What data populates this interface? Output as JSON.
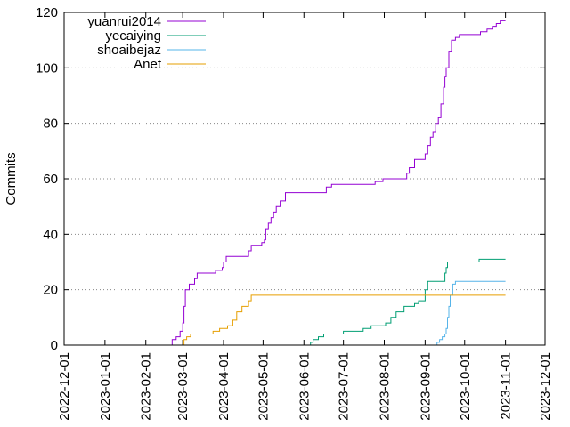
{
  "chart_data": {
    "type": "line",
    "title": "",
    "xlabel": "",
    "ylabel": "Commits",
    "ylim": [
      0,
      120
    ],
    "xlim": [
      "2022-12-01",
      "2023-12-01"
    ],
    "yticks": [
      0,
      20,
      40,
      60,
      80,
      100,
      120
    ],
    "xticks": [
      "2022-12-01",
      "2023-01-01",
      "2023-02-01",
      "2023-03-01",
      "2023-04-01",
      "2023-05-01",
      "2023-06-01",
      "2023-07-01",
      "2023-08-01",
      "2023-09-01",
      "2023-10-01",
      "2023-11-01",
      "2023-12-01"
    ],
    "grid": "horizontal dotted",
    "legend_position": "top-left",
    "series": [
      {
        "name": "yuanrui2014",
        "color": "#9400d3",
        "points": [
          [
            "2023-02-18",
            0
          ],
          [
            "2023-02-21",
            2
          ],
          [
            "2023-02-24",
            3
          ],
          [
            "2023-02-27",
            5
          ],
          [
            "2023-03-01",
            8
          ],
          [
            "2023-03-02",
            14
          ],
          [
            "2023-03-03",
            20
          ],
          [
            "2023-03-06",
            22
          ],
          [
            "2023-03-10",
            24
          ],
          [
            "2023-03-12",
            26
          ],
          [
            "2023-03-25",
            26
          ],
          [
            "2023-03-26",
            27
          ],
          [
            "2023-03-31",
            28
          ],
          [
            "2023-04-01",
            30
          ],
          [
            "2023-04-03",
            32
          ],
          [
            "2023-04-18",
            32
          ],
          [
            "2023-04-20",
            34
          ],
          [
            "2023-04-22",
            36
          ],
          [
            "2023-04-30",
            37
          ],
          [
            "2023-05-02",
            38
          ],
          [
            "2023-05-03",
            42
          ],
          [
            "2023-05-05",
            44
          ],
          [
            "2023-05-07",
            46
          ],
          [
            "2023-05-09",
            48
          ],
          [
            "2023-05-11",
            50
          ],
          [
            "2023-05-14",
            52
          ],
          [
            "2023-05-18",
            55
          ],
          [
            "2023-06-15",
            55
          ],
          [
            "2023-06-18",
            57
          ],
          [
            "2023-06-22",
            58
          ],
          [
            "2023-07-22",
            58
          ],
          [
            "2023-07-25",
            59
          ],
          [
            "2023-07-31",
            60
          ],
          [
            "2023-08-16",
            60
          ],
          [
            "2023-08-18",
            62
          ],
          [
            "2023-08-20",
            64
          ],
          [
            "2023-08-24",
            67
          ],
          [
            "2023-08-30",
            67
          ],
          [
            "2023-09-01",
            69
          ],
          [
            "2023-09-03",
            72
          ],
          [
            "2023-09-05",
            75
          ],
          [
            "2023-09-07",
            77
          ],
          [
            "2023-09-09",
            80
          ],
          [
            "2023-09-11",
            82
          ],
          [
            "2023-09-13",
            87
          ],
          [
            "2023-09-15",
            93
          ],
          [
            "2023-09-16",
            97
          ],
          [
            "2023-09-17",
            100
          ],
          [
            "2023-09-19",
            106
          ],
          [
            "2023-09-21",
            110
          ],
          [
            "2023-09-24",
            111
          ],
          [
            "2023-09-27",
            112
          ],
          [
            "2023-10-10",
            112
          ],
          [
            "2023-10-13",
            113
          ],
          [
            "2023-10-18",
            114
          ],
          [
            "2023-10-22",
            115
          ],
          [
            "2023-10-25",
            116
          ],
          [
            "2023-10-28",
            117
          ],
          [
            "2023-11-01",
            117
          ]
        ]
      },
      {
        "name": "yecaiying",
        "color": "#009e73",
        "points": [
          [
            "2023-06-05",
            0
          ],
          [
            "2023-06-06",
            1
          ],
          [
            "2023-06-08",
            2
          ],
          [
            "2023-06-12",
            3
          ],
          [
            "2023-06-16",
            4
          ],
          [
            "2023-06-28",
            4
          ],
          [
            "2023-07-01",
            5
          ],
          [
            "2023-07-12",
            5
          ],
          [
            "2023-07-16",
            6
          ],
          [
            "2023-07-22",
            7
          ],
          [
            "2023-07-31",
            7
          ],
          [
            "2023-08-02",
            8
          ],
          [
            "2023-08-06",
            10
          ],
          [
            "2023-08-10",
            12
          ],
          [
            "2023-08-16",
            14
          ],
          [
            "2023-08-24",
            15
          ],
          [
            "2023-08-27",
            16
          ],
          [
            "2023-09-01",
            20
          ],
          [
            "2023-09-03",
            23
          ],
          [
            "2023-09-15",
            23
          ],
          [
            "2023-09-16",
            26
          ],
          [
            "2023-09-17",
            28
          ],
          [
            "2023-09-18",
            30
          ],
          [
            "2023-10-07",
            30
          ],
          [
            "2023-10-12",
            31
          ],
          [
            "2023-11-01",
            31
          ]
        ]
      },
      {
        "name": "shoaibejaz",
        "color": "#56b4e9",
        "points": [
          [
            "2023-09-08",
            0
          ],
          [
            "2023-09-10",
            1
          ],
          [
            "2023-09-12",
            2
          ],
          [
            "2023-09-14",
            3
          ],
          [
            "2023-09-16",
            4
          ],
          [
            "2023-09-17",
            6
          ],
          [
            "2023-09-18",
            10
          ],
          [
            "2023-09-19",
            14
          ],
          [
            "2023-09-20",
            18
          ],
          [
            "2023-09-22",
            22
          ],
          [
            "2023-09-24",
            23
          ],
          [
            "2023-11-01",
            23
          ]
        ]
      },
      {
        "name": "Anet",
        "color": "#e69f00",
        "points": [
          [
            "2023-02-28",
            0
          ],
          [
            "2023-03-02",
            2
          ],
          [
            "2023-03-04",
            3
          ],
          [
            "2023-03-07",
            4
          ],
          [
            "2023-03-20",
            4
          ],
          [
            "2023-03-24",
            5
          ],
          [
            "2023-03-29",
            6
          ],
          [
            "2023-04-04",
            7
          ],
          [
            "2023-04-08",
            9
          ],
          [
            "2023-04-11",
            12
          ],
          [
            "2023-04-15",
            14
          ],
          [
            "2023-04-20",
            16
          ],
          [
            "2023-04-22",
            18
          ],
          [
            "2023-11-01",
            18
          ]
        ]
      }
    ]
  }
}
